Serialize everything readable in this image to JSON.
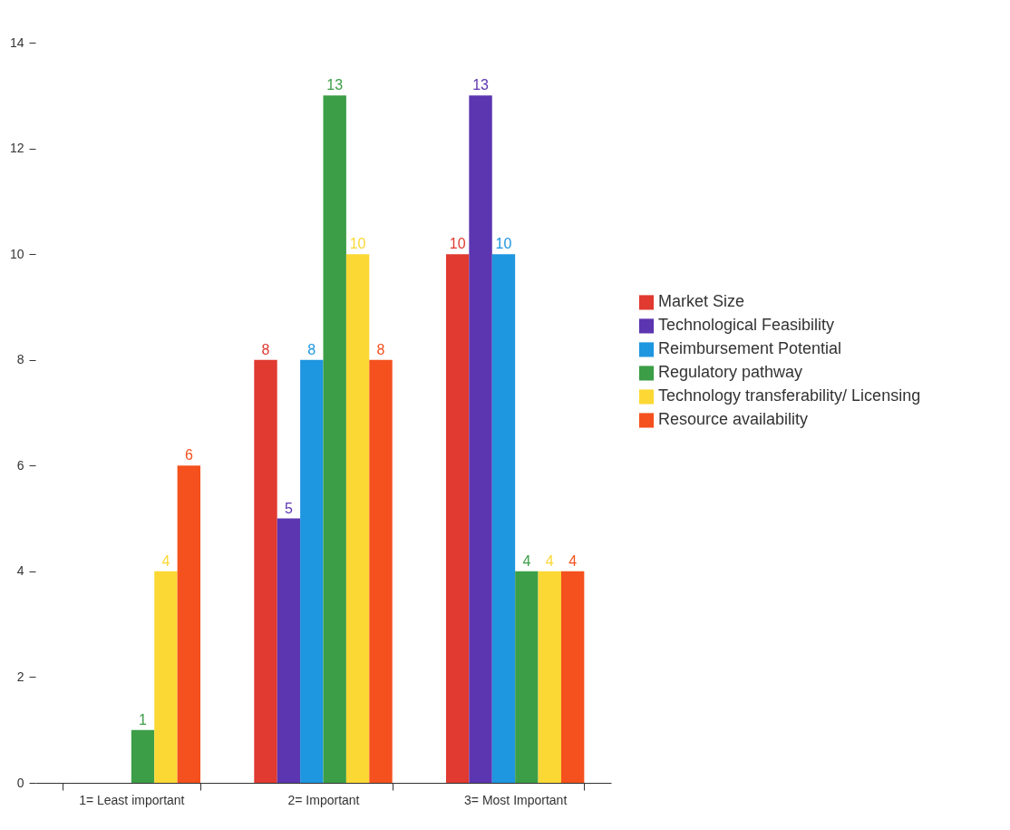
{
  "chart_data": {
    "type": "bar",
    "categories": [
      "1= Least important",
      "2= Important",
      "3= Most Important"
    ],
    "series": [
      {
        "name": "Market Size",
        "color": "#e03a31",
        "values": [
          null,
          8,
          10
        ]
      },
      {
        "name": "Technological Feasibility",
        "color": "#5c35b0",
        "values": [
          null,
          5,
          13
        ]
      },
      {
        "name": "Reimbursement Potential",
        "color": "#1e96e0",
        "values": [
          null,
          8,
          10
        ]
      },
      {
        "name": "Regulatory pathway",
        "color": "#3c9e47",
        "values": [
          1,
          13,
          4
        ]
      },
      {
        "name": "Technology transferability/ Licensing",
        "color": "#fcd835",
        "values": [
          4,
          10,
          4
        ]
      },
      {
        "name": "Resource availability",
        "color": "#f4511e",
        "values": [
          6,
          8,
          4
        ]
      }
    ],
    "ylim": [
      0,
      14
    ],
    "yticks": [
      0,
      2,
      4,
      6,
      8,
      10,
      12,
      14
    ],
    "grid": false,
    "legend": "right",
    "data_labels": true
  }
}
